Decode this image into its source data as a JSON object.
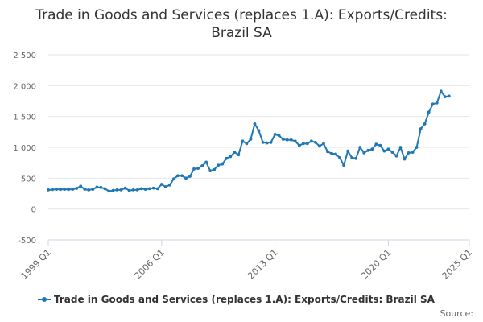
{
  "chart_data": {
    "type": "line",
    "title": "Trade in Goods and Services (replaces 1.A): Exports/Credits: Brazil SA",
    "title_lines": [
      "Trade in Goods and Services (replaces 1.A): Exports/Credits:",
      "Brazil SA"
    ],
    "xlabel": "",
    "ylabel": "",
    "ylim": [
      -500,
      2500
    ],
    "y_ticks": [
      -500,
      0,
      500,
      1000,
      1500,
      2000,
      2500
    ],
    "y_tick_labels": [
      "-500",
      "0",
      "500",
      "1 000",
      "1 500",
      "2 000",
      "2 500"
    ],
    "x_start": "1999 Q1",
    "x_ticks": [
      {
        "index": 0,
        "label": "1999 Q1"
      },
      {
        "index": 28,
        "label": "2006 Q1"
      },
      {
        "index": 56,
        "label": "2013 Q1"
      },
      {
        "index": 84,
        "label": "2020 Q1"
      },
      {
        "index": 104,
        "label": "2025 Q1"
      }
    ],
    "x_axis_last_index": 104,
    "grid": true,
    "legend_position": "bottom",
    "series": [
      {
        "name": "Trade in Goods and Services (replaces 1.A): Exports/Credits: Brazil SA",
        "color": "#1f77b4",
        "values": [
          310,
          315,
          320,
          318,
          320,
          318,
          320,
          335,
          370,
          320,
          310,
          320,
          355,
          350,
          330,
          290,
          300,
          310,
          310,
          340,
          300,
          310,
          310,
          330,
          320,
          330,
          340,
          330,
          400,
          360,
          390,
          490,
          540,
          540,
          500,
          530,
          650,
          660,
          700,
          760,
          620,
          640,
          710,
          730,
          820,
          850,
          920,
          880,
          1100,
          1060,
          1130,
          1380,
          1270,
          1080,
          1070,
          1080,
          1210,
          1190,
          1130,
          1120,
          1120,
          1100,
          1030,
          1060,
          1060,
          1100,
          1080,
          1020,
          1060,
          930,
          900,
          890,
          830,
          710,
          940,
          830,
          820,
          1000,
          910,
          950,
          970,
          1050,
          1030,
          940,
          970,
          920,
          860,
          1000,
          810,
          910,
          920,
          1000,
          1300,
          1380,
          1570,
          1700,
          1720,
          1910,
          1820,
          1830
        ]
      }
    ],
    "source_label": "Source:"
  }
}
